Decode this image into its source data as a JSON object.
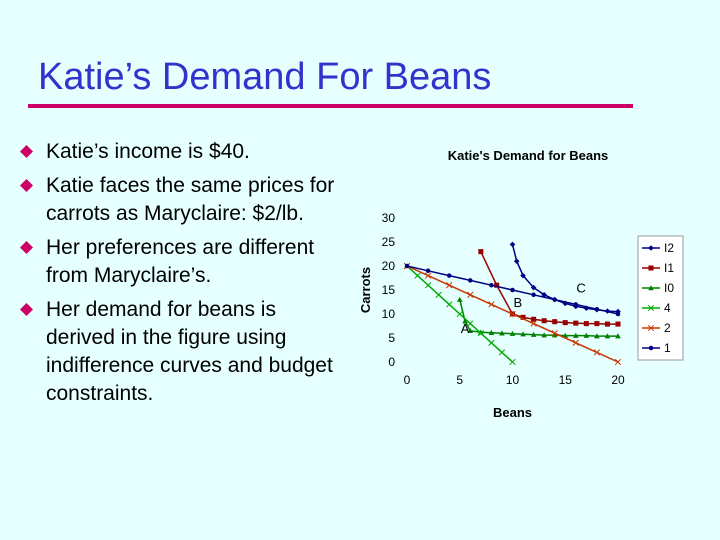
{
  "slide": {
    "title": "Katie’s Demand For Beans",
    "bullets": [
      "Katie’s income is $40.",
      "Katie faces the same prices for carrots as Maryclaire: $2/lb.",
      "Her preferences are different from Maryclaire’s.",
      "Her demand for beans is derived in the figure using indifference curves and budget constraints."
    ]
  },
  "colors": {
    "title": "#3333cc",
    "rule": "#cc0066",
    "bullet": "#cc0066",
    "background": "#e6ffff"
  },
  "chart_data": {
    "type": "line",
    "title": "Katie's Demand for Beans",
    "xlabel": "Beans",
    "ylabel": "Carrots",
    "xlim": [
      0,
      20
    ],
    "ylim": [
      0,
      30
    ],
    "xticks": [
      "0",
      "5",
      "10",
      "15",
      "20"
    ],
    "yticks": [
      "0",
      "5",
      "10",
      "15",
      "20",
      "25",
      "30"
    ],
    "grid": false,
    "legend_position": "right",
    "annotations": [
      {
        "text": "A",
        "x": 5.5,
        "y": 6
      },
      {
        "text": "B",
        "x": 10.5,
        "y": 11.5
      },
      {
        "text": "C",
        "x": 16.5,
        "y": 14.5
      }
    ],
    "series": [
      {
        "name": "I2",
        "color": "#000080",
        "marker": "diamond",
        "x": [
          10,
          10.4,
          11,
          12,
          13,
          14,
          15,
          16,
          17,
          18,
          19,
          20
        ],
        "y": [
          24.5,
          21,
          18,
          15.5,
          14,
          13,
          12.2,
          11.6,
          11.2,
          10.9,
          10.6,
          10.5
        ]
      },
      {
        "name": "I1",
        "color": "#990000",
        "marker": "square",
        "x": [
          7,
          8.5,
          10,
          11,
          12,
          13,
          14,
          15,
          16,
          17,
          18,
          19,
          20
        ],
        "y": [
          23,
          16,
          10,
          9.3,
          8.9,
          8.6,
          8.4,
          8.2,
          8.1,
          8,
          8,
          7.9,
          7.9
        ]
      },
      {
        "name": "I0",
        "color": "#008000",
        "marker": "triangle",
        "x": [
          5,
          5.5,
          6,
          7,
          8,
          9,
          10,
          11,
          12,
          13,
          14,
          15,
          16,
          17,
          18,
          19,
          20
        ],
        "y": [
          13,
          8.5,
          6.5,
          6.2,
          6.1,
          6,
          5.9,
          5.8,
          5.7,
          5.6,
          5.6,
          5.5,
          5.5,
          5.5,
          5.4,
          5.4,
          5.4
        ]
      },
      {
        "name": "4",
        "color": "#00aa00",
        "marker": "x",
        "x": [
          0,
          1,
          2,
          3,
          4,
          5,
          6,
          7,
          8,
          9,
          10
        ],
        "y": [
          20,
          18,
          16,
          14,
          12,
          10,
          8,
          6,
          4,
          2,
          0
        ]
      },
      {
        "name": "2",
        "color": "#cc3300",
        "marker": "x",
        "x": [
          0,
          2,
          4,
          6,
          8,
          10,
          12,
          14,
          16,
          18,
          20
        ],
        "y": [
          20,
          18,
          16,
          14,
          12,
          10,
          8,
          6,
          4,
          2,
          0
        ]
      },
      {
        "name": "1",
        "color": "#000080",
        "marker": "circle",
        "x": [
          0,
          2,
          4,
          6,
          8,
          10,
          12,
          14,
          16,
          18,
          20
        ],
        "y": [
          20,
          19,
          18,
          17,
          16,
          15,
          14,
          13,
          12,
          11,
          10
        ]
      }
    ]
  }
}
